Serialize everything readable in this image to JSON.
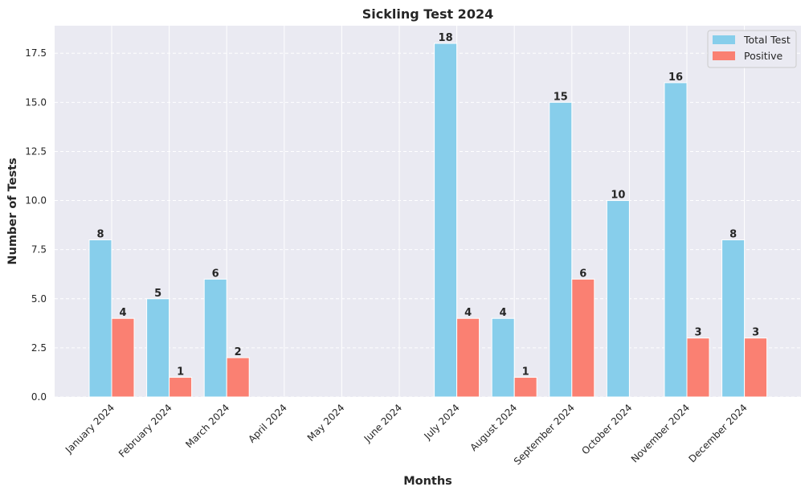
{
  "chart_data": {
    "type": "bar",
    "title": "Sickling Test 2024",
    "xlabel": "Months",
    "ylabel": "Number of Tests",
    "categories": [
      "January 2024",
      "February 2024",
      "March 2024",
      "April 2024",
      "May 2024",
      "June 2024",
      "July 2024",
      "August 2024",
      "September 2024",
      "October 2024",
      "November 2024",
      "December 2024"
    ],
    "series": [
      {
        "name": "Total Test",
        "color": "#87ceeb",
        "values": [
          8,
          5,
          6,
          0,
          0,
          0,
          18,
          4,
          15,
          10,
          16,
          8
        ]
      },
      {
        "name": "Positive",
        "color": "#fa8072",
        "values": [
          4,
          1,
          2,
          0,
          0,
          0,
          4,
          1,
          6,
          0,
          3,
          3
        ]
      }
    ],
    "ylim": [
      0,
      18.9
    ],
    "yticks": [
      0.0,
      2.5,
      5.0,
      7.5,
      10.0,
      12.5,
      15.0,
      17.5
    ],
    "ytick_labels": [
      "0.0",
      "2.5",
      "5.0",
      "7.5",
      "10.0",
      "12.5",
      "15.0",
      "17.5"
    ],
    "grid": true,
    "legend_position": "top-right",
    "background": "#eaeaf2"
  }
}
